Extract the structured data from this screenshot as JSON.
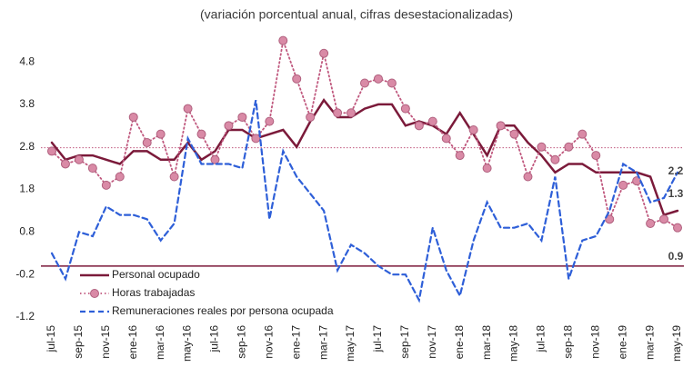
{
  "chart_data": {
    "type": "line",
    "title": "(variación porcentual anual, cifras desestacionalizadas)",
    "categories": [
      "jul-15",
      null,
      "sep-15",
      null,
      "nov-15",
      null,
      "ene-16",
      null,
      "mar-16",
      null,
      "may-16",
      null,
      "jul-16",
      null,
      "sep-16",
      null,
      "nov-16",
      null,
      "ene-17",
      null,
      "mar-17",
      null,
      "may-17",
      null,
      "jul-17",
      null,
      "sep-17",
      null,
      "nov-17",
      null,
      "ene-18",
      null,
      "mar-18",
      null,
      "may-18",
      null,
      "jul-18",
      null,
      "sep-18",
      null,
      "nov-18",
      null,
      "ene-19",
      null,
      "mar-19",
      null,
      "may-19"
    ],
    "series": [
      {
        "name": "Personal ocupado",
        "color": "#7b1a3a",
        "style": "solid",
        "values": [
          2.9,
          2.5,
          2.6,
          2.6,
          2.5,
          2.4,
          2.7,
          2.7,
          2.5,
          2.5,
          2.9,
          2.5,
          2.7,
          3.2,
          3.2,
          3.0,
          3.1,
          3.2,
          2.8,
          3.4,
          3.9,
          3.5,
          3.5,
          3.7,
          3.8,
          3.8,
          3.3,
          3.4,
          3.3,
          3.1,
          3.6,
          3.1,
          2.6,
          3.3,
          3.3,
          2.9,
          2.6,
          2.2,
          2.4,
          2.4,
          2.2,
          2.2,
          2.2,
          2.2,
          2.1,
          1.2,
          1.3
        ]
      },
      {
        "name": "Horas trabajadas",
        "color": "#c0587e",
        "style": "dotted-markers",
        "values": [
          2.7,
          2.4,
          2.5,
          2.3,
          1.9,
          2.1,
          3.5,
          2.9,
          3.1,
          2.1,
          3.7,
          3.1,
          2.5,
          3.3,
          3.5,
          3.0,
          3.4,
          5.3,
          4.4,
          3.5,
          5.0,
          3.6,
          3.6,
          4.3,
          4.4,
          4.3,
          3.7,
          3.3,
          3.4,
          3.0,
          2.6,
          3.2,
          2.3,
          3.3,
          3.1,
          2.1,
          2.8,
          2.5,
          2.8,
          3.1,
          2.6,
          1.1,
          1.9,
          2.0,
          1.0,
          1.1,
          0.9
        ]
      },
      {
        "name": "Remuneraciones reales por persona ocupada",
        "color": "#2e5fd8",
        "style": "dashed",
        "values": [
          0.3,
          -0.3,
          0.8,
          0.7,
          1.4,
          1.2,
          1.2,
          1.1,
          0.6,
          1.0,
          3.0,
          2.4,
          2.4,
          2.4,
          2.3,
          3.9,
          1.1,
          2.7,
          2.1,
          1.7,
          1.3,
          -0.1,
          0.5,
          0.3,
          0.0,
          -0.2,
          -0.2,
          -0.8,
          0.9,
          -0.1,
          -0.7,
          0.6,
          1.5,
          0.9,
          0.9,
          1.0,
          0.6,
          2.1,
          -0.3,
          0.6,
          0.7,
          1.3,
          2.4,
          2.2,
          1.5,
          1.6,
          2.2
        ]
      }
    ],
    "ylim": [
      -1.2,
      5.4
    ],
    "yticks": [
      -1.2,
      -0.2,
      0.8,
      1.8,
      2.8,
      3.8,
      4.8
    ],
    "grid": false,
    "reference_lines": [
      {
        "value": 0,
        "color": "#7b1a3a"
      },
      {
        "value": 2.78,
        "color": "#c0587e"
      }
    ],
    "label_last_values": true,
    "legend": "lower-left"
  }
}
